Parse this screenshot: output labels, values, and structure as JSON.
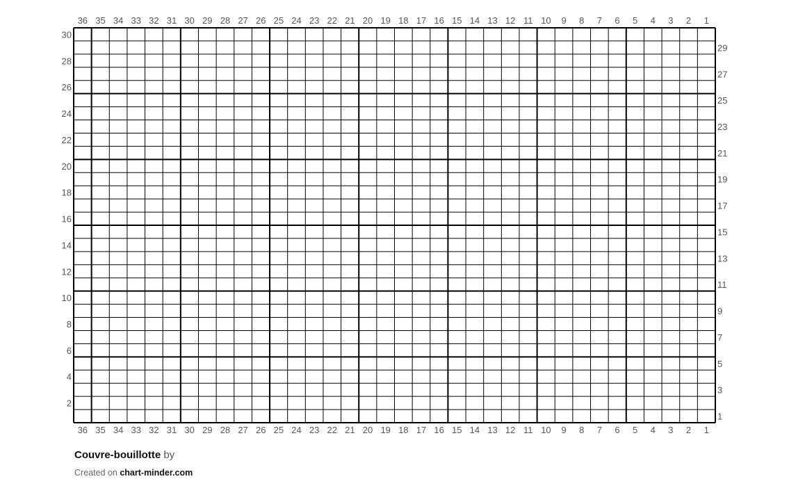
{
  "chart_data": {
    "type": "table",
    "title": "Couvre-bouillotte",
    "columns": 36,
    "rows": 30,
    "column_labels": [
      36,
      35,
      34,
      33,
      32,
      31,
      30,
      29,
      28,
      27,
      26,
      25,
      24,
      23,
      22,
      21,
      20,
      19,
      18,
      17,
      16,
      15,
      14,
      13,
      12,
      11,
      10,
      9,
      8,
      7,
      6,
      5,
      4,
      3,
      2,
      1
    ],
    "row_labels_left": [
      30,
      28,
      26,
      24,
      22,
      20,
      18,
      16,
      14,
      12,
      10,
      8,
      6,
      4,
      2
    ],
    "row_labels_right": [
      29,
      27,
      25,
      23,
      21,
      19,
      17,
      15,
      13,
      11,
      9,
      7,
      5,
      3,
      1
    ],
    "major_grid_every": 5,
    "cells": "empty",
    "grid_color": "#000000",
    "cell_color": "#ffffff"
  },
  "footer": {
    "title": "Couvre-bouillotte",
    "by": "by",
    "created_on": "Created on",
    "site": "chart-minder.com"
  }
}
